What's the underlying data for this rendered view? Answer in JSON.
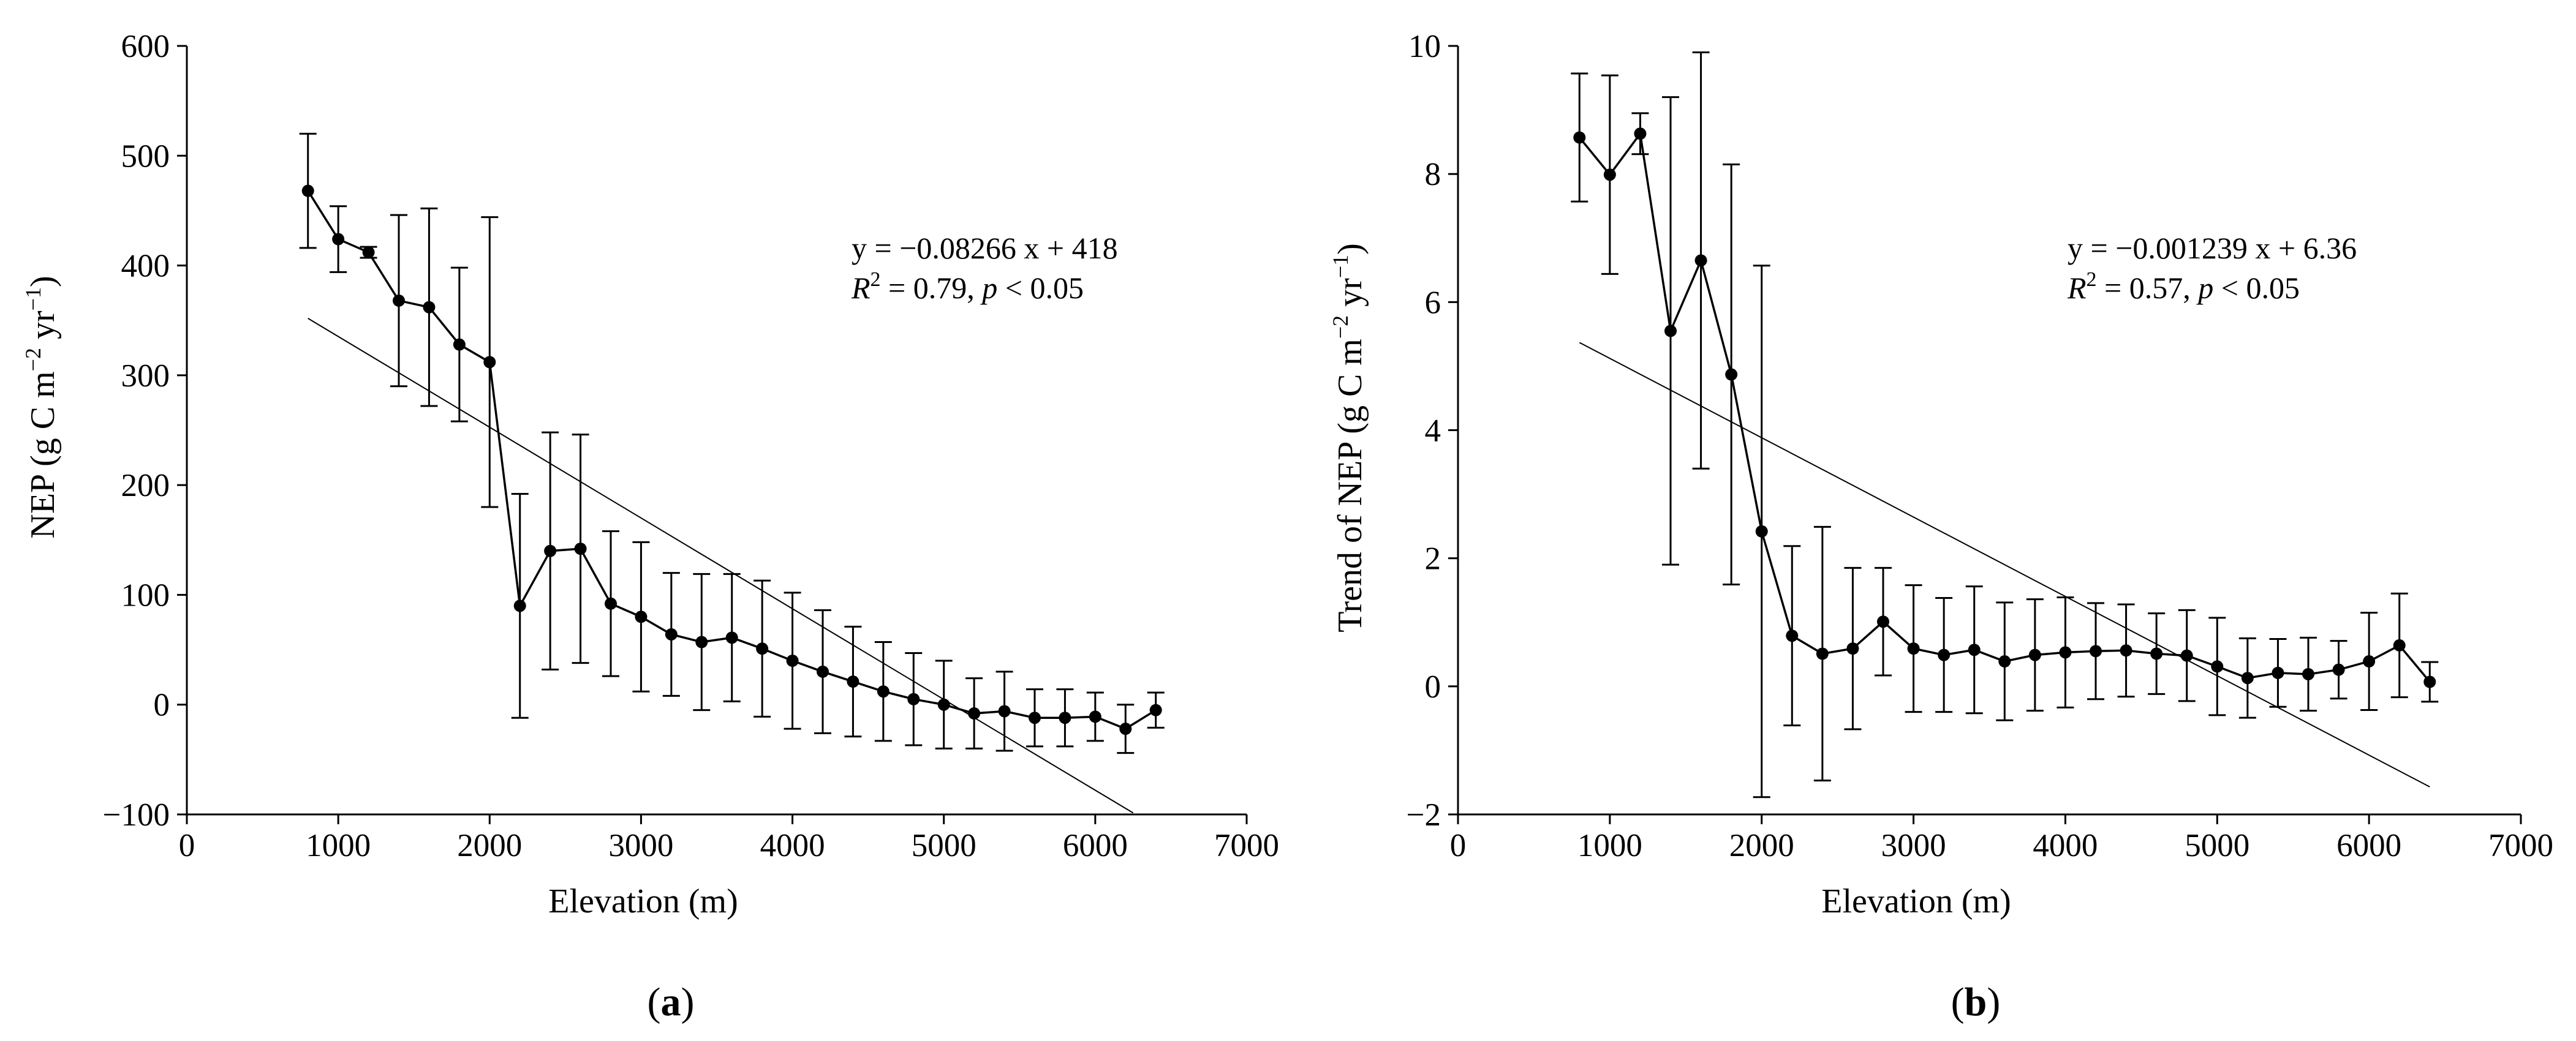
{
  "chart_data": [
    {
      "type": "line",
      "panel": "(a)",
      "panel_label_open": "(",
      "panel_label_letter": "a",
      "panel_label_close": ")",
      "xlabel": "Elevation (m)",
      "ylabel_main": "NEP (g C m",
      "ylabel_sup1": "−2",
      "ylabel_mid": " yr",
      "ylabel_sup2": "−1",
      "ylabel_end": ")",
      "xlim": [
        0,
        7000
      ],
      "ylim": [
        -100,
        600
      ],
      "xticks": [
        0,
        1000,
        2000,
        3000,
        4000,
        5000,
        6000,
        7000
      ],
      "xtick_labels": [
        "0",
        "1000",
        "2000",
        "3000",
        "4000",
        "5000",
        "6000",
        "7000"
      ],
      "yticks": [
        -100,
        0,
        100,
        200,
        300,
        400,
        500,
        600
      ],
      "ytick_labels": [
        "−100",
        "0",
        "100",
        "200",
        "300",
        "400",
        "500",
        "600"
      ],
      "x": [
        800,
        1000,
        1200,
        1400,
        1600,
        1800,
        2000,
        2200,
        2400,
        2600,
        2800,
        3000,
        3200,
        3400,
        3600,
        3800,
        4000,
        4200,
        4400,
        4600,
        4800,
        5000,
        5200,
        5400,
        5600,
        5800,
        6000,
        6200,
        6400
      ],
      "y": [
        468,
        424,
        412,
        368,
        362,
        328,
        312,
        90,
        140,
        142,
        92,
        80,
        64,
        57,
        61,
        51,
        40,
        30,
        21,
        12,
        5,
        0,
        -8,
        -6,
        -12,
        -12,
        -11,
        -22,
        -5
      ],
      "error": [
        52,
        30,
        5,
        78,
        90,
        70,
        132,
        102,
        108,
        104,
        66,
        68,
        56,
        62,
        58,
        62,
        62,
        56,
        50,
        45,
        42,
        40,
        32,
        36,
        26,
        26,
        22,
        22,
        16
      ],
      "fit": {
        "slope": -0.08266,
        "intercept": 418,
        "x_range": [
          800,
          6250
        ]
      },
      "annotation_line1": "y = −0.08266 x + 418",
      "annotation_R": "R",
      "annotation_sup": "2",
      "annotation_stat_mid": " = 0.79, ",
      "annotation_p": "p",
      "annotation_stat_end": " < 0.05"
    },
    {
      "type": "line",
      "panel": "(b)",
      "panel_label_open": "(",
      "panel_label_letter": "b",
      "panel_label_close": ")",
      "xlabel": "Elevation (m)",
      "ylabel_main": "Trend of NEP (g C m",
      "ylabel_sup1": "−2",
      "ylabel_mid": " yr",
      "ylabel_sup2": "−1",
      "ylabel_end": ")",
      "xlim": [
        0,
        7000
      ],
      "ylim": [
        -2,
        10
      ],
      "xticks": [
        0,
        1000,
        2000,
        3000,
        4000,
        5000,
        6000,
        7000
      ],
      "xtick_labels": [
        "0",
        "1000",
        "2000",
        "3000",
        "4000",
        "5000",
        "6000",
        "7000"
      ],
      "yticks": [
        -2,
        0,
        2,
        4,
        6,
        8,
        10
      ],
      "ytick_labels": [
        "−2",
        "0",
        "2",
        "4",
        "6",
        "8",
        "10"
      ],
      "x": [
        800,
        1000,
        1200,
        1400,
        1600,
        1800,
        2000,
        2200,
        2400,
        2600,
        2800,
        3000,
        3200,
        3400,
        3600,
        3800,
        4000,
        4200,
        4400,
        4600,
        4800,
        5000,
        5200,
        5400,
        5600,
        5800,
        6000,
        6200,
        6400
      ],
      "y": [
        8.57,
        7.99,
        8.63,
        5.55,
        6.65,
        4.87,
        2.42,
        0.79,
        0.51,
        0.59,
        1.01,
        0.59,
        0.49,
        0.57,
        0.39,
        0.49,
        0.53,
        0.55,
        0.56,
        0.51,
        0.48,
        0.31,
        0.13,
        0.21,
        0.19,
        0.26,
        0.39,
        0.64,
        0.07
      ],
      "error": [
        1.0,
        1.55,
        0.32,
        3.65,
        3.25,
        3.28,
        4.15,
        1.4,
        1.98,
        1.26,
        0.84,
        0.99,
        0.89,
        0.99,
        0.92,
        0.87,
        0.86,
        0.75,
        0.72,
        0.63,
        0.71,
        0.76,
        0.62,
        0.53,
        0.57,
        0.45,
        0.76,
        0.81,
        0.31
      ],
      "fit": {
        "slope": -0.001239,
        "intercept": 6.36,
        "x_range": [
          800,
          6400
        ]
      },
      "annotation_line1": "y = −0.001239 x + 6.36",
      "annotation_R": "R",
      "annotation_sup": "2",
      "annotation_stat_mid": " = 0.57, ",
      "annotation_p": "p",
      "annotation_stat_end": " < 0.05"
    }
  ]
}
